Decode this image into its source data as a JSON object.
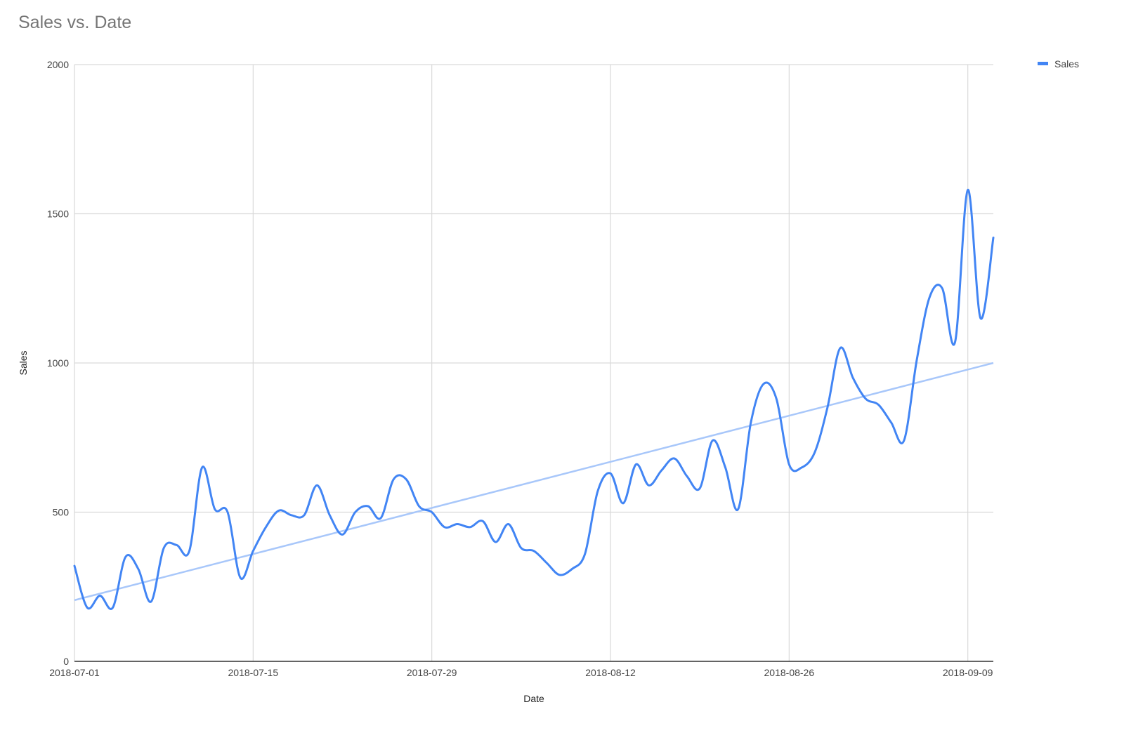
{
  "chart_data": {
    "type": "line",
    "title": "Sales vs. Date",
    "xlabel": "Date",
    "ylabel": "Sales",
    "ylim": [
      0,
      2000
    ],
    "y_ticks": [
      "0",
      "500",
      "1000",
      "1500",
      "2000"
    ],
    "x_ticks": [
      "2018-07-01",
      "2018-07-15",
      "2018-07-29",
      "2018-08-12",
      "2018-08-26",
      "2018-09-09"
    ],
    "grid": true,
    "legend_position": "top-right",
    "colors": {
      "series": "#4285f4",
      "trendline": "#a8c7fa",
      "grid": "#d9d9d9"
    },
    "x": [
      "2018-07-01",
      "2018-07-02",
      "2018-07-03",
      "2018-07-04",
      "2018-07-05",
      "2018-07-06",
      "2018-07-07",
      "2018-07-08",
      "2018-07-09",
      "2018-07-10",
      "2018-07-11",
      "2018-07-12",
      "2018-07-13",
      "2018-07-14",
      "2018-07-15",
      "2018-07-16",
      "2018-07-17",
      "2018-07-18",
      "2018-07-19",
      "2018-07-20",
      "2018-07-21",
      "2018-07-22",
      "2018-07-23",
      "2018-07-24",
      "2018-07-25",
      "2018-07-26",
      "2018-07-27",
      "2018-07-28",
      "2018-07-29",
      "2018-07-30",
      "2018-07-31",
      "2018-08-01",
      "2018-08-02",
      "2018-08-03",
      "2018-08-04",
      "2018-08-05",
      "2018-08-06",
      "2018-08-07",
      "2018-08-08",
      "2018-08-09",
      "2018-08-10",
      "2018-08-11",
      "2018-08-12",
      "2018-08-13",
      "2018-08-14",
      "2018-08-15",
      "2018-08-16",
      "2018-08-17",
      "2018-08-18",
      "2018-08-19",
      "2018-08-20",
      "2018-08-21",
      "2018-08-22",
      "2018-08-23",
      "2018-08-24",
      "2018-08-25",
      "2018-08-26",
      "2018-08-27",
      "2018-08-28",
      "2018-08-29",
      "2018-08-30",
      "2018-08-31",
      "2018-09-01",
      "2018-09-02",
      "2018-09-03",
      "2018-09-04",
      "2018-09-05",
      "2018-09-06",
      "2018-09-07",
      "2018-09-08",
      "2018-09-09",
      "2018-09-10",
      "2018-09-11"
    ],
    "series": [
      {
        "name": "Sales",
        "values": [
          320,
          180,
          220,
          180,
          350,
          310,
          200,
          380,
          390,
          370,
          650,
          510,
          500,
          280,
          370,
          450,
          505,
          490,
          490,
          590,
          490,
          425,
          500,
          520,
          480,
          610,
          610,
          520,
          500,
          450,
          460,
          450,
          470,
          400,
          460,
          380,
          370,
          330,
          290,
          310,
          360,
          570,
          630,
          530,
          660,
          590,
          640,
          680,
          620,
          580,
          740,
          650,
          510,
          800,
          930,
          880,
          660,
          650,
          700,
          850,
          1050,
          950,
          880,
          860,
          800,
          740,
          1010,
          1220,
          1250,
          1070,
          1580,
          1150,
          1420
        ]
      }
    ],
    "trendline": {
      "start": 205,
      "end": 1000
    },
    "legend": [
      "Sales"
    ]
  }
}
